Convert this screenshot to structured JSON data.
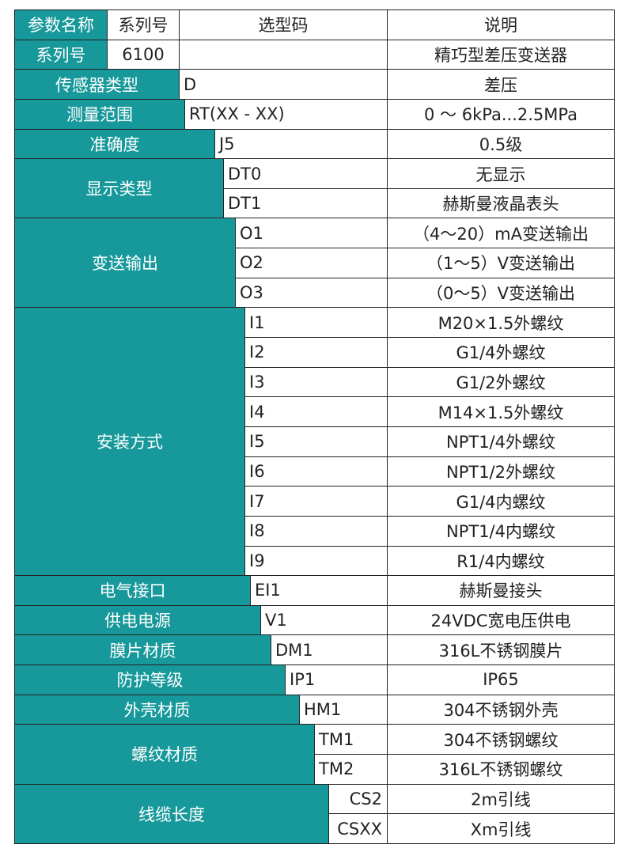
{
  "header": [
    "参数名称",
    "系列号",
    "选型码",
    "说明"
  ],
  "series_row": {
    "label": "系列号",
    "code": "6100",
    "description": "精巧型差压变送器"
  },
  "groups": [
    {
      "name": "传感器类型",
      "options": [
        {
          "code": "D",
          "description": "差压"
        }
      ]
    },
    {
      "name": "测量范围",
      "options": [
        {
          "code": "RT(XX - XX)",
          "description": "0 ～ 6kPa...2.5MPa"
        }
      ]
    },
    {
      "name": "准确度",
      "options": [
        {
          "code": "J5",
          "description": "0.5级"
        }
      ]
    },
    {
      "name": "显示类型",
      "options": [
        {
          "code": "DT0",
          "description": "无显示"
        },
        {
          "code": "DT1",
          "description": "赫斯曼液晶表头"
        }
      ]
    },
    {
      "name": "变送输出",
      "options": [
        {
          "code": "O1",
          "description": "（4～20）mA变送输出"
        },
        {
          "code": "O2",
          "description": "（1～5）V变送输出"
        },
        {
          "code": "O3",
          "description": "（0～5）V变送输出"
        }
      ]
    },
    {
      "name": "安装方式",
      "options": [
        {
          "code": "I1",
          "description": "M20×1.5外螺纹"
        },
        {
          "code": "I2",
          "description": "G1/4外螺纹"
        },
        {
          "code": "I3",
          "description": "G1/2外螺纹"
        },
        {
          "code": "I4",
          "description": "M14×1.5外螺纹"
        },
        {
          "code": "I5",
          "description": "NPT1/4外螺纹"
        },
        {
          "code": "I6",
          "description": "NPT1/2外螺纹"
        },
        {
          "code": "I7",
          "description": "G1/4内螺纹"
        },
        {
          "code": "I8",
          "description": "NPT1/4内螺纹"
        },
        {
          "code": "I9",
          "description": "R1/4内螺纹"
        }
      ]
    },
    {
      "name": "电气接口",
      "options": [
        {
          "code": "EI1",
          "description": "赫斯曼接头"
        }
      ]
    },
    {
      "name": "供电电源",
      "options": [
        {
          "code": "V1",
          "description": "24VDC宽电压供电"
        }
      ]
    },
    {
      "name": "膜片材质",
      "options": [
        {
          "code": "DM1",
          "description": "316L不锈钢膜片"
        }
      ]
    },
    {
      "name": "防护等级",
      "options": [
        {
          "code": "IP1",
          "description": "IP65"
        }
      ]
    },
    {
      "name": "外壳材质",
      "options": [
        {
          "code": "HM1",
          "description": "304不锈钢外壳"
        }
      ]
    },
    {
      "name": "螺纹材质",
      "options": [
        {
          "code": "TM1",
          "description": "304不锈钢螺纹"
        },
        {
          "code": "TM2",
          "description": "316L不锈钢螺纹"
        }
      ]
    },
    {
      "name": "线缆长度",
      "options": [
        {
          "code": "CS2",
          "description": "2m引线"
        },
        {
          "code": "CSXX",
          "description": "Xm引线"
        }
      ]
    }
  ]
}
